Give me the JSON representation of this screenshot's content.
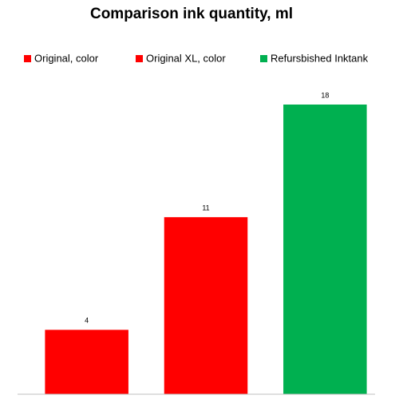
{
  "chart_data": {
    "type": "bar",
    "title": "Comparison ink quantity, ml",
    "categories": [
      null
    ],
    "series": [
      {
        "name": "Original, color",
        "color": "#ff0000",
        "values": [
          4
        ]
      },
      {
        "name": "Original XL, color",
        "color": "#ff0000",
        "values": [
          11
        ]
      },
      {
        "name": "Refursbished Inktank",
        "color": "#00b050",
        "values": [
          18
        ]
      }
    ],
    "ylim": [
      0,
      18
    ],
    "legend": "top"
  }
}
